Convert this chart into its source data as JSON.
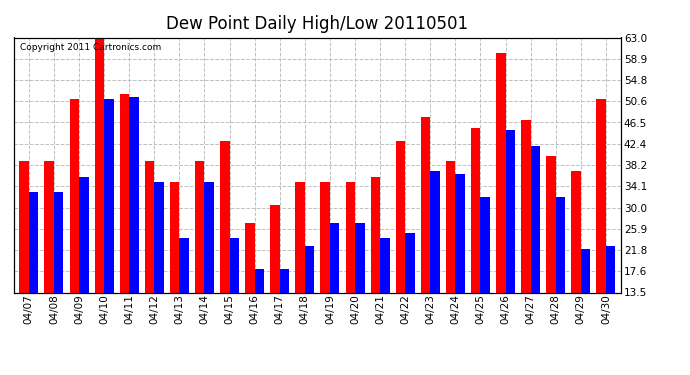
{
  "title": "Dew Point Daily High/Low 20110501",
  "copyright": "Copyright 2011 Cartronics.com",
  "dates": [
    "04/07",
    "04/08",
    "04/09",
    "04/10",
    "04/11",
    "04/12",
    "04/13",
    "04/14",
    "04/15",
    "04/16",
    "04/17",
    "04/18",
    "04/19",
    "04/20",
    "04/21",
    "04/22",
    "04/23",
    "04/24",
    "04/25",
    "04/26",
    "04/27",
    "04/28",
    "04/29",
    "04/30"
  ],
  "highs": [
    39.0,
    39.0,
    51.0,
    63.0,
    52.0,
    39.0,
    35.0,
    39.0,
    43.0,
    27.0,
    30.5,
    35.0,
    35.0,
    35.0,
    36.0,
    43.0,
    47.5,
    39.0,
    45.5,
    60.0,
    47.0,
    40.0,
    37.0,
    51.0
  ],
  "lows": [
    33.0,
    33.0,
    36.0,
    51.0,
    51.5,
    35.0,
    24.0,
    35.0,
    24.0,
    18.0,
    18.0,
    22.5,
    27.0,
    27.0,
    24.0,
    25.0,
    37.0,
    36.5,
    32.0,
    45.0,
    42.0,
    32.0,
    22.0,
    22.5
  ],
  "high_color": "#ff0000",
  "low_color": "#0000ff",
  "bg_color": "#ffffff",
  "grid_color": "#c0c0c0",
  "ymin": 13.5,
  "ymax": 63.0,
  "ytick_values": [
    13.5,
    17.6,
    21.8,
    25.9,
    30.0,
    34.1,
    38.2,
    42.4,
    46.5,
    50.6,
    54.8,
    58.9,
    63.0
  ],
  "ytick_labels": [
    "13.5",
    "17.6",
    "21.8",
    "25.9",
    "30.0",
    "34.1",
    "38.2",
    "42.4",
    "46.5",
    "50.6",
    "54.8",
    "58.9",
    "63.0"
  ],
  "title_fontsize": 12,
  "tick_fontsize": 7.5,
  "copyright_fontsize": 6.5
}
